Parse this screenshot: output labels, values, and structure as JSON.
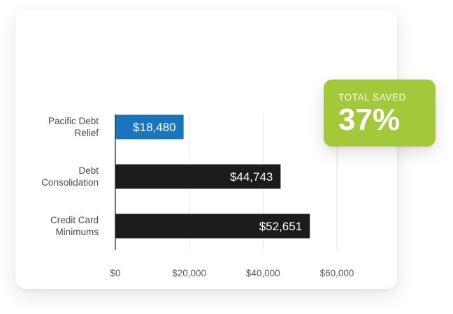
{
  "colors": {
    "highlight_bar": "#1b75bc",
    "default_bar": "#1c1c1c",
    "badge_background": "#a3c93a",
    "gridline": "#e3e3e3",
    "axis": "#1c1c1c"
  },
  "badge": {
    "label": "TOTAL SAVED",
    "value": "37%"
  },
  "chart_data": {
    "type": "bar",
    "orientation": "horizontal",
    "categories": [
      [
        "Pacific Debt",
        "Relief"
      ],
      [
        "Debt",
        "Consolidation"
      ],
      [
        "Credit Card",
        "Minimums"
      ]
    ],
    "values": [
      18480,
      44743,
      52651
    ],
    "value_labels": [
      "$18,480",
      "$44,743",
      "$52,651"
    ],
    "highlight_index": 0,
    "xlim": [
      0,
      60000
    ],
    "xticks": [
      0,
      20000,
      40000,
      60000
    ],
    "xtick_labels": [
      "$0",
      "$20,000",
      "$40,000",
      "$60,000"
    ],
    "grid": true
  }
}
